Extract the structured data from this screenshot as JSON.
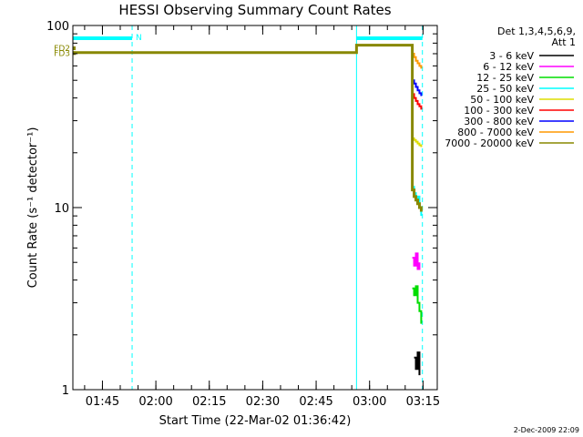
{
  "chart_data": {
    "type": "line",
    "title": "HESSI Observing Summary Count Rates",
    "xlabel": "Start Time (22-Mar-02 01:36:42)",
    "ylabel": "Count Rate (s⁻¹ detector⁻¹)",
    "y_scale": "log",
    "ylim": [
      1,
      100
    ],
    "xlim": [
      "01:36:42",
      "03:19:00"
    ],
    "x_ticks": [
      "01:45",
      "02:00",
      "02:15",
      "02:30",
      "02:45",
      "03:00",
      "03:15"
    ],
    "y_ticks": [
      "1",
      "10",
      "100"
    ],
    "grid": false,
    "legend_title": "Det 1,3,4,5,6,9,",
    "legend_subtitle": "Att 1",
    "legend_position": "right",
    "series": [
      {
        "name": "3 - 6 keV",
        "color": "#000000",
        "x": [
          "03:12:30",
          "03:13:00",
          "03:13:30",
          "03:14:00"
        ],
        "y": [
          1.5,
          1.3,
          1.6,
          1.2
        ]
      },
      {
        "name": "6 - 12 keV",
        "color": "#ff00ff",
        "x": [
          "03:12:00",
          "03:12:30",
          "03:13:00",
          "03:13:30",
          "03:14:00"
        ],
        "y": [
          5.3,
          4.8,
          5.6,
          4.6,
          5.0
        ]
      },
      {
        "name": "12 - 25 keV",
        "color": "#00dd00",
        "x": [
          "03:12:00",
          "03:12:30",
          "03:13:00",
          "03:13:30",
          "03:14:00",
          "03:14:30"
        ],
        "y": [
          3.6,
          3.3,
          3.7,
          3.0,
          2.7,
          2.3
        ]
      },
      {
        "name": "25 - 50 keV",
        "color": "#00ffff",
        "x": [
          "03:12:00",
          "03:12:30",
          "03:13:00",
          "03:13:30",
          "03:14:00",
          "03:14:30"
        ],
        "y": [
          13.0,
          12.0,
          11.0,
          11.5,
          10.0,
          9.0
        ]
      },
      {
        "name": "50 - 100 keV",
        "color": "#dddd00",
        "x": [
          "03:12:00",
          "03:12:30",
          "03:13:00",
          "03:13:30",
          "03:14:00",
          "03:14:30"
        ],
        "y": [
          24.0,
          23.5,
          23.0,
          22.5,
          22.0,
          21.5
        ]
      },
      {
        "name": "100 - 300 keV",
        "color": "#ff0000",
        "x": [
          "03:12:00",
          "03:12:30",
          "03:13:00",
          "03:13:30",
          "03:14:00",
          "03:14:30"
        ],
        "y": [
          42.0,
          40.0,
          38.5,
          37.0,
          36.0,
          34.5
        ]
      },
      {
        "name": "300 - 800 keV",
        "color": "#0000ff",
        "x": [
          "03:12:00",
          "03:12:30",
          "03:13:00",
          "03:13:30",
          "03:14:00",
          "03:14:30"
        ],
        "y": [
          50.0,
          48.0,
          46.0,
          44.0,
          42.5,
          41.0
        ]
      },
      {
        "name": "800 - 7000 keV",
        "color": "#ff9900",
        "x": [
          "03:12:00",
          "03:12:30",
          "03:13:00",
          "03:13:30",
          "03:14:00",
          "03:14:30"
        ],
        "y": [
          70.0,
          67.0,
          64.0,
          62.0,
          60.0,
          58.0
        ]
      },
      {
        "name": "7000 - 20000 keV",
        "color": "#888800",
        "x": [
          "01:36:42",
          "02:56:20",
          "02:56:20",
          "03:12:00",
          "03:12:00",
          "03:12:30",
          "03:13:00",
          "03:13:30",
          "03:14:00",
          "03:14:30"
        ],
        "y": [
          71.0,
          71.0,
          78.0,
          78.0,
          12.5,
          11.5,
          11.0,
          10.5,
          10.0,
          9.5
        ]
      }
    ],
    "flag_bars": [
      {
        "label": "N",
        "color": "#00ffff",
        "x": [
          "01:36:42",
          "01:53:20"
        ]
      },
      {
        "label": "",
        "color": "#00ffff",
        "x": [
          "02:56:20",
          "03:14:50"
        ]
      }
    ],
    "flag_markers": [
      {
        "label": "FD2",
        "color": "#888800",
        "y": 75.0
      },
      {
        "label": "FD3",
        "color": "#888800",
        "y": 70.5
      }
    ],
    "vlines_solid": [
      "01:36:42",
      "02:56:20"
    ],
    "vlines_dashed": [
      "01:53:20",
      "03:14:50"
    ],
    "vline_color": "#00ffff"
  },
  "stamp": "2-Dec-2009 22:09"
}
